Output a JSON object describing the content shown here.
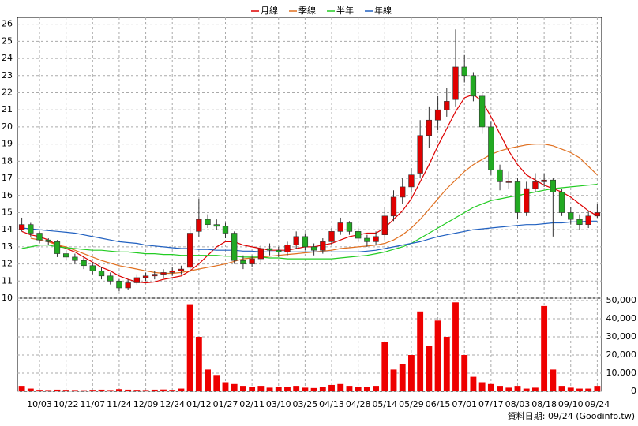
{
  "chart_data": {
    "type": "candlestick",
    "categories": [
      null,
      null,
      "10/03",
      null,
      null,
      "10/22",
      null,
      null,
      "11/07",
      null,
      null,
      "11/24",
      null,
      null,
      "12/09",
      null,
      null,
      "12/24",
      null,
      null,
      "01/12",
      null,
      null,
      "01/27",
      null,
      null,
      "02/11",
      null,
      null,
      "03/10",
      null,
      null,
      "03/25",
      null,
      null,
      "04/13",
      null,
      null,
      "04/28",
      null,
      null,
      "05/14",
      null,
      null,
      "05/29",
      null,
      null,
      "06/15",
      null,
      null,
      "07/01",
      null,
      null,
      "07/17",
      null,
      null,
      "08/03",
      null,
      null,
      "08/18",
      null,
      null,
      "09/10",
      null,
      null,
      "09/24"
    ],
    "open": [
      14.0,
      14.3,
      13.8,
      13.4,
      13.3,
      12.6,
      12.4,
      12.2,
      11.9,
      11.6,
      11.3,
      11.0,
      10.6,
      10.9,
      11.2,
      11.3,
      11.4,
      11.5,
      11.6,
      11.8,
      13.9,
      14.6,
      14.3,
      14.2,
      13.8,
      12.2,
      12.0,
      12.3,
      12.9,
      12.8,
      12.7,
      13.1,
      13.6,
      13.0,
      12.8,
      13.3,
      13.9,
      14.4,
      13.9,
      13.5,
      13.3,
      13.7,
      14.8,
      15.9,
      16.5,
      17.3,
      19.5,
      20.4,
      21.0,
      21.6,
      23.5,
      23.0,
      21.8,
      20.0,
      17.5,
      16.8,
      16.8,
      15.0,
      16.4,
      16.8,
      16.9,
      16.2,
      15.0,
      14.6,
      14.3,
      14.8
    ],
    "high": [
      14.7,
      14.4,
      13.9,
      13.5,
      13.4,
      12.8,
      12.6,
      12.4,
      12.1,
      11.8,
      11.5,
      11.1,
      11.1,
      11.4,
      11.5,
      11.6,
      11.7,
      11.8,
      11.9,
      14.2,
      15.8,
      14.9,
      14.6,
      14.4,
      13.9,
      12.5,
      12.5,
      13.1,
      13.2,
      13.0,
      13.3,
      13.9,
      13.8,
      13.2,
      13.5,
      14.1,
      14.7,
      14.5,
      14.1,
      13.7,
      13.9,
      15.3,
      16.3,
      17.0,
      17.6,
      20.4,
      21.2,
      21.8,
      22.3,
      25.7,
      24.2,
      23.2,
      22.0,
      20.3,
      17.8,
      17.4,
      17.0,
      16.8,
      17.3,
      17.3,
      17.0,
      16.4,
      15.3,
      14.9,
      15.1,
      15.5
    ],
    "low": [
      13.9,
      13.6,
      13.2,
      13.1,
      12.4,
      12.2,
      12.0,
      11.7,
      11.4,
      11.1,
      10.8,
      10.4,
      10.5,
      10.8,
      11.0,
      11.1,
      11.2,
      11.3,
      11.4,
      11.5,
      13.6,
      14.1,
      14.0,
      13.5,
      12.0,
      11.7,
      11.8,
      12.1,
      12.5,
      12.4,
      12.5,
      12.9,
      12.8,
      12.5,
      12.6,
      13.1,
      13.7,
      13.7,
      13.3,
      13.0,
      13.1,
      13.4,
      14.5,
      15.5,
      16.2,
      17.0,
      18.8,
      19.8,
      20.6,
      21.2,
      22.6,
      21.5,
      19.6,
      17.2,
      16.3,
      16.4,
      14.6,
      14.8,
      16.2,
      16.5,
      13.6,
      14.8,
      14.3,
      14.0,
      14.1,
      14.7
    ],
    "close": [
      14.3,
      13.8,
      13.4,
      13.3,
      12.6,
      12.4,
      12.2,
      11.9,
      11.6,
      11.3,
      11.0,
      10.6,
      10.9,
      11.2,
      11.3,
      11.4,
      11.5,
      11.6,
      11.7,
      13.8,
      14.6,
      14.3,
      14.2,
      13.8,
      12.2,
      12.0,
      12.3,
      12.9,
      12.8,
      12.7,
      13.1,
      13.6,
      13.0,
      12.8,
      13.3,
      13.9,
      14.4,
      13.9,
      13.5,
      13.3,
      13.6,
      14.8,
      15.9,
      16.5,
      17.2,
      19.5,
      20.4,
      21.0,
      21.5,
      23.5,
      23.0,
      21.8,
      20.0,
      17.5,
      16.8,
      16.8,
      15.0,
      16.4,
      16.8,
      16.9,
      16.2,
      15.0,
      14.6,
      14.3,
      14.8,
      15.0
    ],
    "up_color": "#e00000",
    "down_color": "#22aa22",
    "series": [
      {
        "name": "月線",
        "color": "#dd0000",
        "values": [
          13.9,
          13.7,
          13.6,
          13.4,
          13.1,
          12.9,
          12.7,
          12.4,
          12.1,
          11.8,
          11.6,
          11.3,
          11.1,
          10.95,
          10.9,
          10.95,
          11.1,
          11.2,
          11.3,
          11.6,
          12.0,
          12.5,
          13.0,
          13.3,
          13.3,
          13.1,
          13.0,
          12.9,
          12.8,
          12.8,
          12.8,
          12.9,
          13.0,
          13.0,
          13.1,
          13.2,
          13.4,
          13.6,
          13.7,
          13.8,
          13.8,
          14.1,
          14.6,
          15.1,
          15.8,
          16.8,
          17.8,
          18.9,
          19.9,
          20.9,
          21.7,
          21.9,
          21.5,
          20.6,
          19.6,
          18.6,
          17.8,
          17.2,
          16.9,
          16.6,
          16.4,
          16.2,
          15.9,
          15.5,
          15.1,
          14.8
        ]
      },
      {
        "name": "季線",
        "color": "#e07020",
        "values": [
          null,
          13.5,
          13.4,
          13.3,
          13.1,
          13.0,
          12.8,
          12.6,
          12.4,
          12.2,
          12.05,
          11.9,
          11.8,
          11.7,
          11.6,
          11.5,
          11.45,
          11.45,
          11.5,
          11.6,
          11.7,
          11.8,
          11.9,
          12.0,
          12.15,
          12.3,
          12.35,
          12.4,
          12.45,
          12.5,
          12.55,
          12.6,
          12.65,
          12.7,
          12.75,
          12.8,
          12.9,
          12.95,
          13.0,
          13.05,
          13.1,
          13.2,
          13.4,
          13.7,
          14.1,
          14.6,
          15.2,
          15.8,
          16.4,
          16.9,
          17.4,
          17.8,
          18.1,
          18.4,
          18.6,
          18.75,
          18.85,
          18.95,
          19.0,
          19.0,
          18.9,
          18.7,
          18.5,
          18.2,
          17.7,
          17.2
        ]
      },
      {
        "name": "半年",
        "color": "#22cc22",
        "values": [
          12.9,
          13.0,
          13.1,
          13.1,
          13.0,
          12.95,
          12.9,
          12.85,
          12.8,
          12.8,
          12.75,
          12.7,
          12.7,
          12.65,
          12.6,
          12.6,
          12.55,
          12.55,
          12.5,
          12.5,
          12.5,
          12.5,
          12.5,
          12.45,
          12.45,
          12.4,
          12.4,
          12.4,
          12.35,
          12.35,
          12.3,
          12.3,
          12.3,
          12.3,
          12.3,
          12.3,
          12.35,
          12.4,
          12.45,
          12.5,
          12.6,
          12.7,
          12.85,
          13.0,
          13.2,
          13.5,
          13.8,
          14.1,
          14.4,
          14.7,
          15.0,
          15.3,
          15.5,
          15.7,
          15.8,
          15.9,
          16.0,
          16.1,
          16.2,
          16.3,
          16.4,
          16.45,
          16.5,
          16.55,
          16.6,
          16.65
        ]
      },
      {
        "name": "年線",
        "color": "#2060c0",
        "values": [
          14.1,
          14.05,
          14.0,
          13.95,
          13.9,
          13.85,
          13.8,
          13.7,
          13.6,
          13.5,
          13.4,
          13.3,
          13.25,
          13.2,
          13.1,
          13.05,
          13.0,
          12.95,
          12.9,
          12.9,
          12.85,
          12.85,
          12.8,
          12.8,
          12.8,
          12.75,
          12.75,
          12.7,
          12.7,
          12.7,
          12.7,
          12.7,
          12.7,
          12.7,
          12.7,
          12.7,
          12.7,
          12.7,
          12.7,
          12.75,
          12.8,
          12.9,
          13.0,
          13.1,
          13.2,
          13.3,
          13.45,
          13.6,
          13.7,
          13.8,
          13.9,
          14.0,
          14.05,
          14.1,
          14.15,
          14.2,
          14.25,
          14.3,
          14.3,
          14.35,
          14.4,
          14.4,
          14.45,
          14.45,
          14.5,
          14.5
        ]
      }
    ],
    "ylim": [
      10,
      26.4
    ],
    "yticks": [
      10,
      11,
      12,
      13,
      14,
      15,
      16,
      17,
      18,
      19,
      20,
      21,
      22,
      23,
      24,
      25,
      26
    ],
    "grid": true,
    "volume": {
      "color": "#ee0000",
      "values": [
        3000,
        1500,
        800,
        700,
        900,
        800,
        700,
        600,
        800,
        900,
        700,
        1200,
        900,
        800,
        700,
        900,
        1000,
        800,
        1500,
        48000,
        30000,
        12000,
        9000,
        5000,
        4000,
        3000,
        2500,
        3000,
        2000,
        2200,
        2500,
        3000,
        2000,
        1800,
        2500,
        3500,
        4000,
        3000,
        2500,
        2200,
        3000,
        27000,
        12000,
        15000,
        20000,
        44000,
        25000,
        39000,
        30000,
        49000,
        20000,
        8000,
        5000,
        4000,
        3000,
        2000,
        3000,
        1500,
        2000,
        47000,
        12000,
        3000,
        2000,
        1500,
        1500,
        3000
      ],
      "ylim": [
        0,
        51300
      ],
      "yticks": [
        0,
        {
          "value": 10000,
          "label": "10,000"
        },
        {
          "value": 20000,
          "label": "20,000"
        },
        {
          "value": 30000,
          "label": "30,000"
        },
        {
          "value": 40000,
          "label": "40,000"
        },
        {
          "value": 50000,
          "label": "50,000"
        }
      ]
    },
    "footer": "資料日期: 09/24 (Goodinfo.tw)"
  }
}
